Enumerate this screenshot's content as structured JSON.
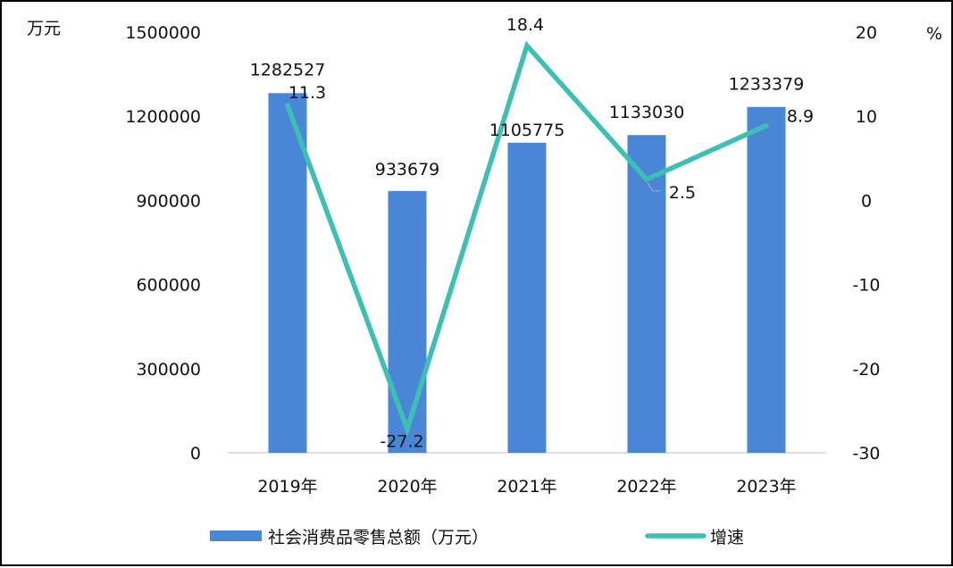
{
  "chart_data": {
    "type": "bar",
    "categories": [
      "2019年",
      "2020年",
      "2021年",
      "2022年",
      "2023年"
    ],
    "series": [
      {
        "name": "社会消费品零售总额（万元）",
        "type": "bar",
        "axis": "left",
        "color": "#4a86d6",
        "values": [
          1282527,
          933679,
          1105775,
          1133030,
          1233379
        ],
        "labels": [
          "1282527",
          "933679",
          "1105775",
          "1133030",
          "1233379"
        ]
      },
      {
        "name": "增速",
        "type": "line",
        "axis": "right",
        "color": "#3dbfb3",
        "values": [
          11.3,
          -27.2,
          18.4,
          2.5,
          8.9
        ],
        "labels": [
          "11.3",
          "-27.2",
          "18.4",
          "2.5",
          "8.9"
        ]
      }
    ],
    "y_left": {
      "unit": "万元",
      "range": [
        0,
        1500000
      ],
      "ticks": [
        "0",
        "300000",
        "600000",
        "900000",
        "1200000",
        "1500000"
      ]
    },
    "y_right": {
      "unit": "%",
      "range": [
        -30,
        20
      ],
      "ticks": [
        "-30",
        "-20",
        "-10",
        "0",
        "10",
        "20"
      ]
    },
    "grid": false,
    "legend_position": "bottom"
  }
}
